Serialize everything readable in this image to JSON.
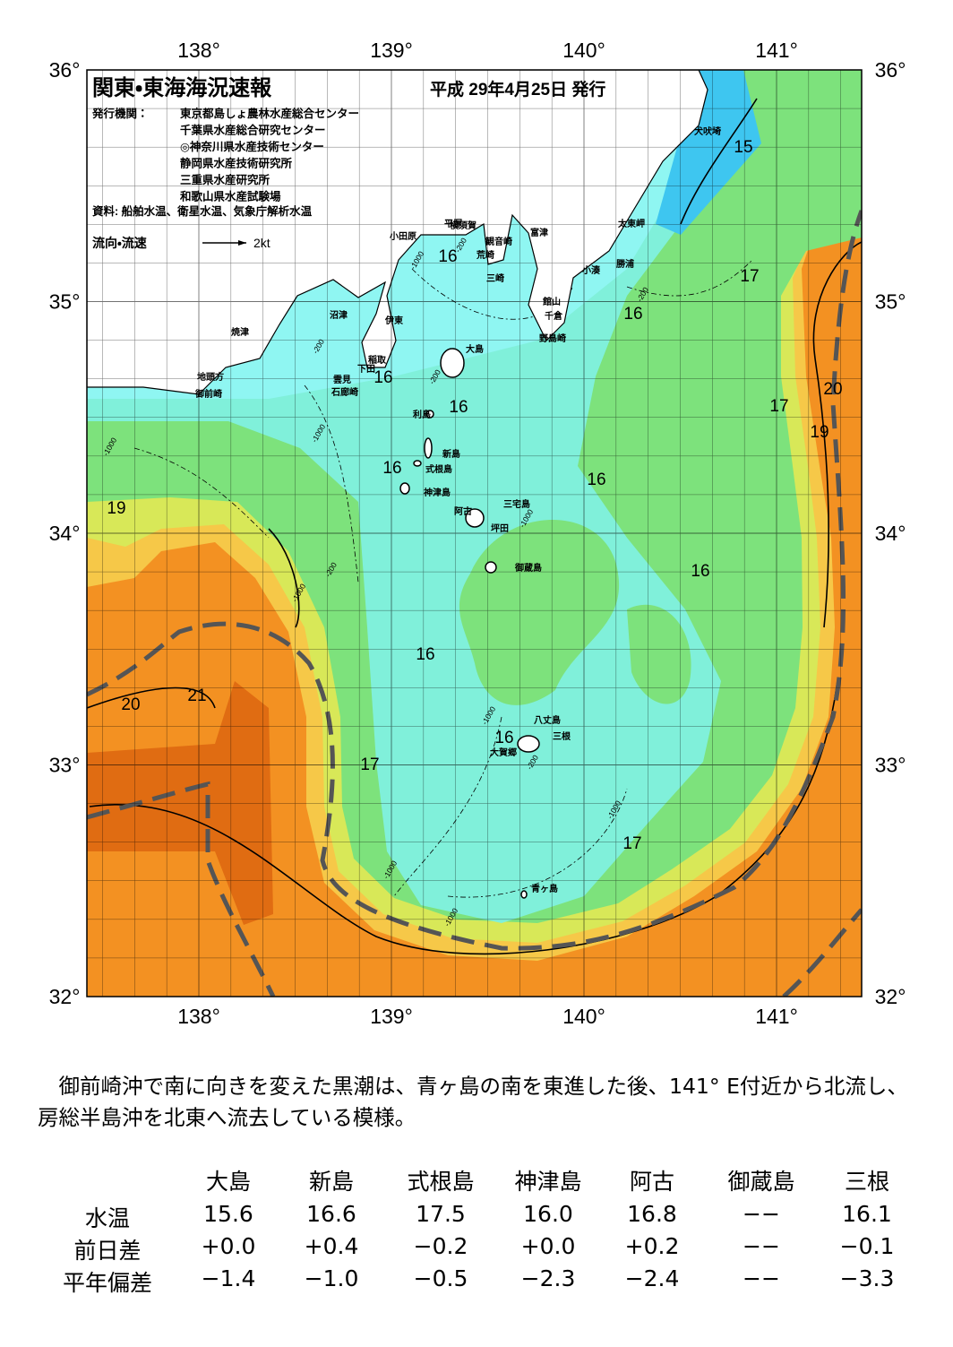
{
  "header": {
    "title": "関東・東海海況速報",
    "date": "平成 29年4月25日 発行",
    "publisher_label": "発行機関：",
    "publishers": [
      "東京都島しょ農林水産総合センター",
      "千葉県水産総合研究センター",
      "◎神奈川県水産技術センター",
      "静岡県水産技術研究所",
      "三重県水産研究所",
      "和歌山県水産試験場"
    ],
    "source": "資料: 船舶水温、衛星水温、気象庁解析水温",
    "flow_legend": {
      "label": "流向・流速",
      "scale": "2kt"
    }
  },
  "map": {
    "lon_labels_top": [
      "138°",
      "139°",
      "140°",
      "141°"
    ],
    "lon_labels_bottom": [
      "138°",
      "139°",
      "140°",
      "141°"
    ],
    "lat_labels_left": [
      "36°",
      "35°",
      "34°",
      "33°",
      "32°"
    ],
    "lat_labels_right": [
      "36°",
      "35°",
      "34°",
      "33°",
      "32°"
    ],
    "place_names": [
      "犬吠埼",
      "太東岬",
      "勝浦",
      "小湊",
      "館山",
      "千倉",
      "野島崎",
      "富津",
      "観音崎",
      "横須賀",
      "平塚",
      "荒崎",
      "三崎",
      "小田原",
      "沼津",
      "伊東",
      "焼津",
      "稲取",
      "下田",
      "雲見",
      "石廊崎",
      "地頭方",
      "御前崎",
      "大島",
      "利島",
      "新島",
      "式根島",
      "神津島",
      "三宅島",
      "阿古",
      "坪田",
      "御蔵島",
      "八丈島",
      "三根",
      "大賀郷",
      "青ヶ島"
    ],
    "isotherm_labels": [
      "15",
      "16",
      "16",
      "16",
      "16",
      "16",
      "16",
      "16",
      "16",
      "16",
      "17",
      "17",
      "17",
      "17",
      "19",
      "19",
      "20",
      "20",
      "21"
    ],
    "depth_labels": [
      "-1000",
      "-200",
      "-200",
      "-200",
      "-1000",
      "-1000",
      "-1000",
      "-200",
      "-1000",
      "-1000",
      "-200",
      "-1000",
      "-1000",
      "-1000",
      "-200"
    ]
  },
  "summary": "御前崎沖で南に向きを変えた黒潮は、青ヶ島の南を東進した後、141° E付近から北流し、房総半島沖を北東へ流去している模様。",
  "table": {
    "columns": [
      "大島",
      "新島",
      "式根島",
      "神津島",
      "阿古",
      "御蔵島",
      "三根"
    ],
    "rows": [
      {
        "label": "水温",
        "cells": [
          "15.6",
          "16.6",
          "17.5",
          "16.0",
          "16.8",
          "−−",
          "16.1"
        ]
      },
      {
        "label": "前日差",
        "cells": [
          "+0.0",
          "+0.4",
          "−0.2",
          "+0.0",
          "+0.2",
          "−−",
          "−0.1"
        ]
      },
      {
        "label": "平年偏差",
        "cells": [
          "−1.4",
          "−1.0",
          "−0.5",
          "−2.3",
          "−2.4",
          "−−",
          "−3.3"
        ]
      }
    ]
  }
}
